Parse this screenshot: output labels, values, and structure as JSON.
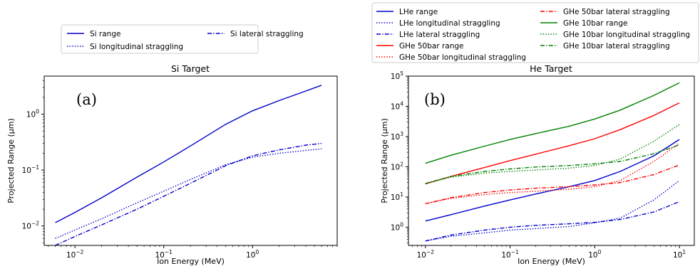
{
  "chart_data": [
    {
      "type": "line",
      "panel_label": "(a)",
      "title": "Si Target",
      "xlabel": "Ion Energy (MeV)",
      "ylabel": "Projected Range (μm)",
      "xscale": "log",
      "yscale": "log",
      "xlim": [
        0.0045,
        9
      ],
      "ylim": [
        0.0045,
        4.8
      ],
      "xticks": [
        0.01,
        0.1,
        1
      ],
      "yticks": [
        0.01,
        0.1,
        1
      ],
      "legend_position": "above",
      "grid": false,
      "series": [
        {
          "name": "Si range",
          "color": "#0000cc",
          "dash": "solid",
          "x": [
            0.006,
            0.01,
            0.02,
            0.05,
            0.1,
            0.2,
            0.5,
            1,
            2,
            4,
            6
          ],
          "y": [
            0.0115,
            0.0175,
            0.032,
            0.075,
            0.14,
            0.27,
            0.66,
            1.15,
            1.75,
            2.6,
            3.3
          ]
        },
        {
          "name": "Si longitudinal straggling",
          "color": "#0000cc",
          "dash": "dotted",
          "x": [
            0.006,
            0.01,
            0.02,
            0.05,
            0.1,
            0.2,
            0.5,
            1,
            2,
            4,
            6
          ],
          "y": [
            0.006,
            0.0085,
            0.0135,
            0.026,
            0.042,
            0.068,
            0.125,
            0.17,
            0.2,
            0.225,
            0.24
          ]
        },
        {
          "name": "Si lateral straggling",
          "color": "#0000cc",
          "dash": "dashdot",
          "x": [
            0.006,
            0.01,
            0.02,
            0.05,
            0.1,
            0.2,
            0.5,
            1,
            2,
            4,
            6
          ],
          "y": [
            0.0045,
            0.0065,
            0.0105,
            0.02,
            0.034,
            0.058,
            0.12,
            0.18,
            0.23,
            0.28,
            0.3
          ]
        }
      ]
    },
    {
      "type": "line",
      "panel_label": "(b)",
      "title": "He Target",
      "xlabel": "Ion Energy (MeV)",
      "ylabel": "Projected Range (μm)",
      "xscale": "log",
      "yscale": "log",
      "xlim": [
        0.0063,
        15
      ],
      "ylim": [
        0.25,
        100000
      ],
      "xticks": [
        0.01,
        0.1,
        1,
        10
      ],
      "yticks": [
        1,
        10,
        100,
        1000,
        10000,
        100000
      ],
      "legend_position": "above",
      "grid": false,
      "series": [
        {
          "name": "LHe range",
          "color": "#0000cc",
          "dash": "solid",
          "x": [
            0.01,
            0.02,
            0.05,
            0.1,
            0.2,
            0.5,
            1,
            2,
            5,
            10
          ],
          "y": [
            1.6,
            2.6,
            5,
            8,
            12.5,
            22,
            35,
            70,
            230,
            800
          ]
        },
        {
          "name": "LHe longitudinal straggling",
          "color": "#0000cc",
          "dash": "dotted",
          "x": [
            0.01,
            0.02,
            0.05,
            0.1,
            0.2,
            0.5,
            1,
            2,
            5,
            10
          ],
          "y": [
            0.35,
            0.5,
            0.65,
            0.8,
            0.9,
            1.05,
            1.4,
            2,
            8,
            35
          ]
        },
        {
          "name": "LHe lateral straggling",
          "color": "#0000cc",
          "dash": "dashdot",
          "x": [
            0.01,
            0.02,
            0.05,
            0.1,
            0.2,
            0.5,
            1,
            2,
            5,
            10
          ],
          "y": [
            0.35,
            0.55,
            0.8,
            1,
            1.15,
            1.3,
            1.45,
            1.8,
            3.2,
            7
          ]
        },
        {
          "name": "GHe 50bar range",
          "color": "#ff0000",
          "dash": "solid",
          "x": [
            0.01,
            0.02,
            0.05,
            0.1,
            0.2,
            0.5,
            1,
            2,
            5,
            10
          ],
          "y": [
            27,
            48,
            95,
            160,
            260,
            500,
            850,
            1700,
            5000,
            13000
          ]
        },
        {
          "name": "GHe 50bar longitudinal straggling",
          "color": "#ff0000",
          "dash": "dotted",
          "x": [
            0.01,
            0.02,
            0.05,
            0.1,
            0.2,
            0.5,
            1,
            2,
            5,
            10
          ],
          "y": [
            6,
            9,
            12,
            14,
            15.5,
            18,
            22,
            35,
            150,
            600
          ]
        },
        {
          "name": "GHe 50bar lateral straggling",
          "color": "#ff0000",
          "dash": "dashdot",
          "x": [
            0.01,
            0.02,
            0.05,
            0.1,
            0.2,
            0.5,
            1,
            2,
            5,
            10
          ],
          "y": [
            6,
            9.5,
            14,
            17,
            19.5,
            22,
            25,
            30,
            55,
            115
          ]
        },
        {
          "name": "GHe 10bar range",
          "color": "#008000",
          "dash": "solid",
          "x": [
            0.01,
            0.02,
            0.05,
            0.1,
            0.2,
            0.5,
            1,
            2,
            5,
            10
          ],
          "y": [
            130,
            240,
            480,
            800,
            1250,
            2200,
            3800,
            7500,
            23000,
            60000
          ]
        },
        {
          "name": "GHe 10bar longitudinal straggling",
          "color": "#008000",
          "dash": "dotted",
          "x": [
            0.01,
            0.02,
            0.05,
            0.1,
            0.2,
            0.5,
            1,
            2,
            5,
            10
          ],
          "y": [
            28,
            45,
            62,
            70,
            78,
            90,
            110,
            180,
            700,
            2500
          ]
        },
        {
          "name": "GHe 10bar lateral straggling",
          "color": "#008000",
          "dash": "dashdot",
          "x": [
            0.01,
            0.02,
            0.05,
            0.1,
            0.2,
            0.5,
            1,
            2,
            5,
            10
          ],
          "y": [
            28,
            48,
            70,
            85,
            98,
            110,
            125,
            150,
            270,
            530
          ]
        }
      ]
    }
  ]
}
